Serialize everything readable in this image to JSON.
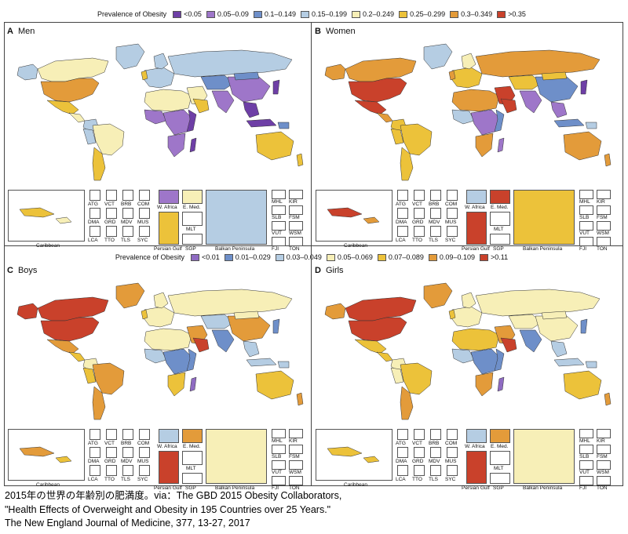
{
  "legend_adult": {
    "title": "Prevalence of Obesity",
    "items": [
      {
        "label": "<0.05",
        "color": "#6e3fa6"
      },
      {
        "label": "0.05–0.09",
        "color": "#9e76c9"
      },
      {
        "label": "0.1–0.149",
        "color": "#6e8fc9"
      },
      {
        "label": "0.15–0.199",
        "color": "#b5cde3"
      },
      {
        "label": "0.2–0.249",
        "color": "#f7efb7"
      },
      {
        "label": "0.25–0.299",
        "color": "#ecc23a"
      },
      {
        "label": "0.3–0.349",
        "color": "#e39b3a"
      },
      {
        "label": ">0.35",
        "color": "#c9412b"
      }
    ]
  },
  "legend_child": {
    "title": "Prevalence of Obesity",
    "items": [
      {
        "label": "<0.01",
        "color": "#8f6bc2"
      },
      {
        "label": "0.01–0.029",
        "color": "#6e8fc9"
      },
      {
        "label": "0.03–0.049",
        "color": "#b5cde3"
      },
      {
        "label": "0.05–0.069",
        "color": "#f7efb7"
      },
      {
        "label": "0.07–0.089",
        "color": "#ecc23a"
      },
      {
        "label": "0.09–0.109",
        "color": "#e39b3a"
      },
      {
        "label": ">0.11",
        "color": "#c9412b"
      }
    ]
  },
  "panels": [
    {
      "letter": "A",
      "title": "Men"
    },
    {
      "letter": "B",
      "title": "Women"
    },
    {
      "letter": "C",
      "title": "Boys"
    },
    {
      "letter": "D",
      "title": "Girls"
    }
  ],
  "inset_labels": {
    "caribbean": "Caribbean",
    "small_countries": [
      "ATG",
      "VCT",
      "BRB",
      "COM",
      "DMA",
      "GRD",
      "MDV",
      "MUS",
      "LCA",
      "TTO",
      "TLS",
      "SYC"
    ],
    "west_africa": "W. Africa",
    "east_med": "E. Med.",
    "persian_gulf": "Persian Gulf",
    "malta": "MLT",
    "singapore": "SGP",
    "balkan": "Balkan Peninsula",
    "pacific": [
      "MHL",
      "KIR",
      "SLB",
      "FSM",
      "VUT",
      "WSM",
      "FJI",
      "TON"
    ]
  },
  "caption": {
    "line1": "2015年の世界の年齢別の肥満度。via：The GBD 2015 Obesity Collaborators,",
    "line2": "\"Health Effects of Overweight and Obesity in 195 Countries over 25 Years.\"",
    "line3": "The New England Journal of Medicine, 377, 13-27, 2017"
  }
}
